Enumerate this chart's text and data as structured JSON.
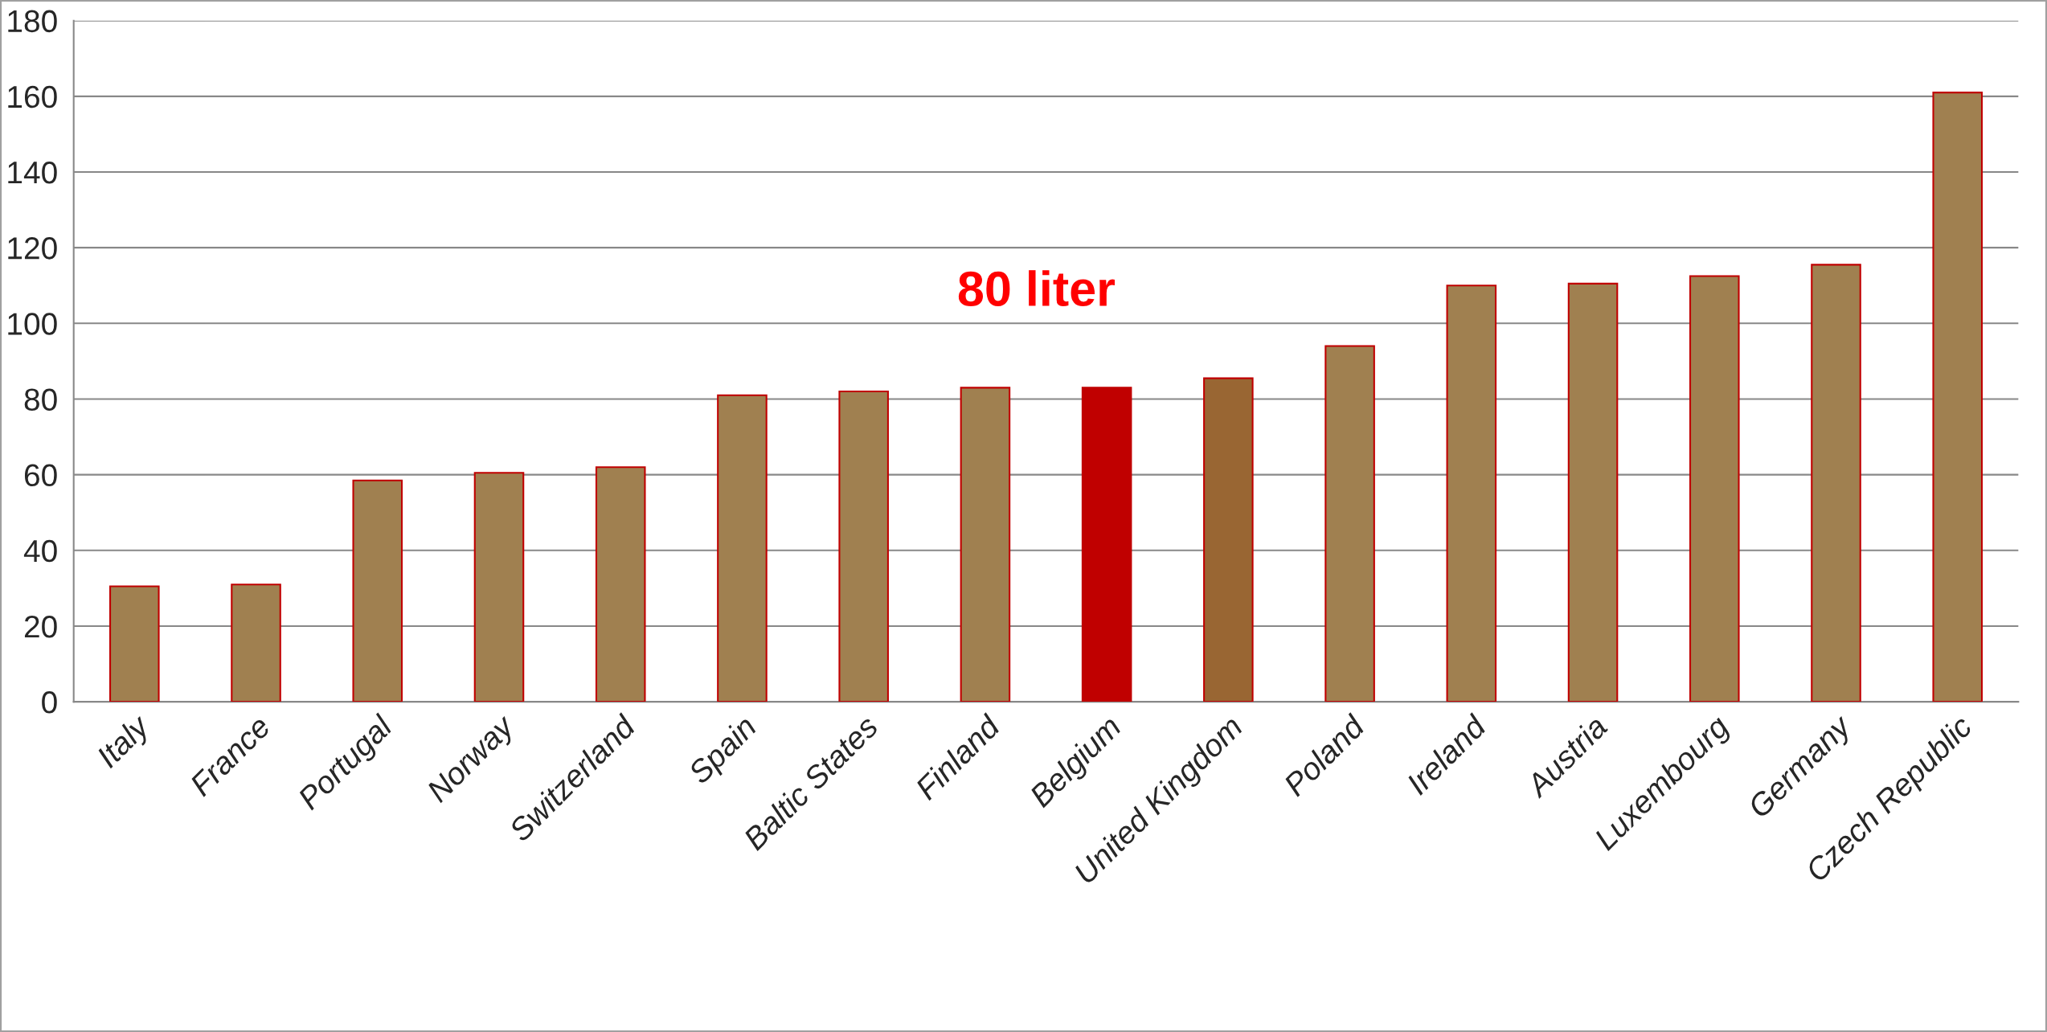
{
  "chart_data": {
    "type": "bar",
    "categories": [
      "Italy",
      "France",
      "Portugal",
      "Norway",
      "Switzerland",
      "Spain",
      "Baltic States",
      "Finland",
      "Belgium",
      "United Kingdom",
      "Poland",
      "Ireland",
      "Austria",
      "Luxembourg",
      "Germany",
      "Czech Republic"
    ],
    "values": [
      30.5,
      31,
      58.5,
      60.5,
      62,
      81,
      82,
      83,
      83,
      85.5,
      94,
      110,
      110.5,
      112.5,
      115.5,
      161
    ],
    "colors": [
      "#a08050",
      "#a08050",
      "#a08050",
      "#a08050",
      "#a08050",
      "#a08050",
      "#a08050",
      "#a08050",
      "#c00000",
      "#996633",
      "#a08050",
      "#a08050",
      "#a08050",
      "#a08050",
      "#a08050",
      "#a08050"
    ],
    "ylim": [
      0,
      180
    ],
    "yticks": [
      0,
      20,
      40,
      60,
      80,
      100,
      120,
      140,
      160,
      180
    ],
    "grid": "y",
    "annotations": [
      "80 liter"
    ]
  }
}
